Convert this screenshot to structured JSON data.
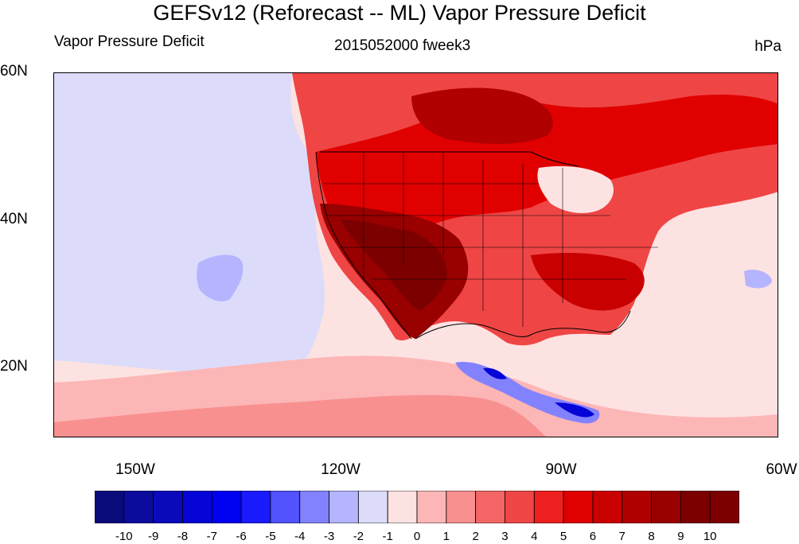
{
  "title": "GEFSv12 (Reforecast -- ML) Vapor Pressure Deficit",
  "subtitles": {
    "left": "Vapor Pressure Deficit",
    "center": "2015052000 fweek3",
    "right": "hPa"
  },
  "map": {
    "lat_labels": [
      "60N",
      "40N",
      "20N"
    ],
    "lon_labels": [
      "150W",
      "120W",
      "90W",
      "60W"
    ],
    "projection": "cylindrical equidistant"
  },
  "colorbar": {
    "tick_labels": [
      "-10",
      "-9",
      "-8",
      "-7",
      "-6",
      "-5",
      "-4",
      "-3",
      "-2",
      "-1",
      "0",
      "1",
      "2",
      "3",
      "4",
      "5",
      "6",
      "7",
      "8",
      "9",
      "10"
    ],
    "colors": [
      "#0a0a7a",
      "#0c0c9c",
      "#0a0aba",
      "#0505d6",
      "#0000f0",
      "#1a1aff",
      "#5252ff",
      "#8282ff",
      "#b4b4ff",
      "#dcdcfa",
      "#fde2e2",
      "#fdb6b6",
      "#f89090",
      "#f46666",
      "#ef4545",
      "#ed1f1f",
      "#e00000",
      "#c90000",
      "#b00000",
      "#990000",
      "#7c0000"
    ]
  }
}
